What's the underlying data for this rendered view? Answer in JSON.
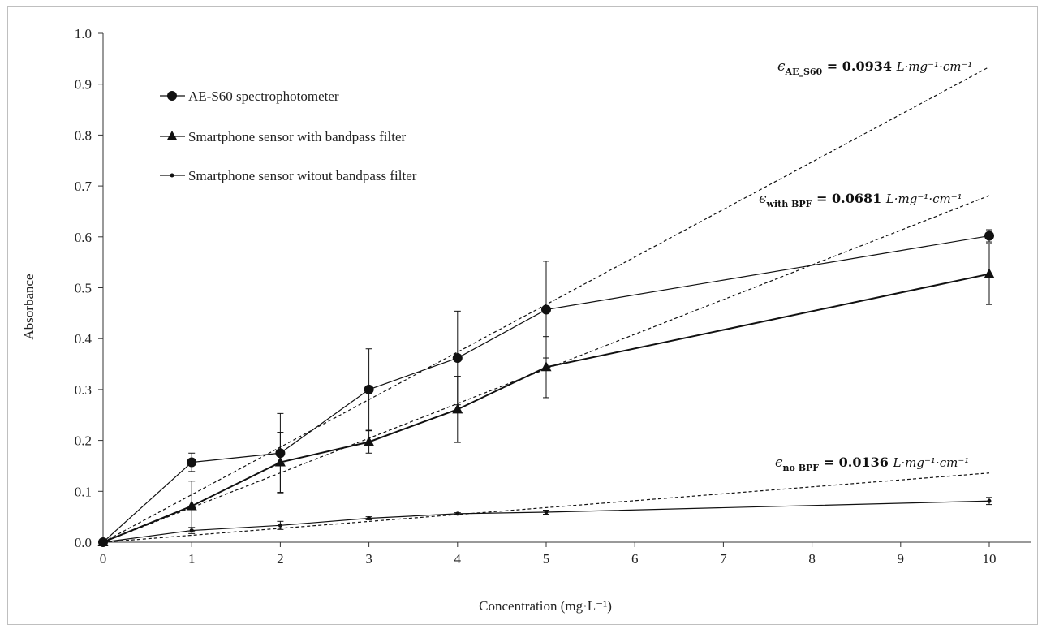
{
  "chart_data": {
    "type": "line",
    "title": "",
    "xlabel": "Concentration (mg·L⁻¹)",
    "ylabel": "Absorbance",
    "categories": [
      "0",
      "1",
      "2",
      "3",
      "4",
      "5",
      "10"
    ],
    "yticks": [
      "0.0",
      "0.1",
      "0.2",
      "0.3",
      "0.4",
      "0.5",
      "0.6",
      "0.7",
      "0.8",
      "0.9",
      "1.0"
    ],
    "ylim": [
      0,
      1.0
    ],
    "grid": false,
    "legend_position": "top-left",
    "series": [
      {
        "name": "AE-S60 spectrophotometer",
        "marker": "circle",
        "values": [
          0.0,
          0.157,
          0.175,
          0.3,
          0.362,
          0.457,
          0.602
        ],
        "errors": [
          0.0,
          0.018,
          0.078,
          0.08,
          0.092,
          0.095,
          0.012
        ]
      },
      {
        "name": "Smartphone sensor with bandpass filter",
        "marker": "triangle",
        "values": [
          0.0,
          0.071,
          0.157,
          0.197,
          0.261,
          0.344,
          0.527
        ],
        "errors": [
          0.0,
          0.049,
          0.059,
          0.022,
          0.065,
          0.06,
          0.06
        ]
      },
      {
        "name": "Smartphone sensor witout bandpass filter",
        "marker": "dot",
        "values": [
          0.0,
          0.023,
          0.033,
          0.047,
          0.056,
          0.059,
          0.081
        ],
        "errors": [
          0.0,
          0.006,
          0.008,
          0.003,
          0.002,
          0.004,
          0.007
        ]
      }
    ],
    "fit_lines": [
      {
        "slope": 0.0934,
        "label_sub": "AE_S60",
        "label_value": "= 0.0934",
        "label_unit": "L·mg⁻¹·cm⁻¹"
      },
      {
        "slope": 0.0681,
        "label_sub": "with BPF",
        "label_value": "= 0.0681",
        "label_unit": "L·mg⁻¹·cm⁻¹"
      },
      {
        "slope": 0.0136,
        "label_sub": "no BPF",
        "label_value": "= 0.0136",
        "label_unit": "L·mg⁻¹·cm⁻¹"
      }
    ],
    "fit_symbol": "ϵ"
  }
}
